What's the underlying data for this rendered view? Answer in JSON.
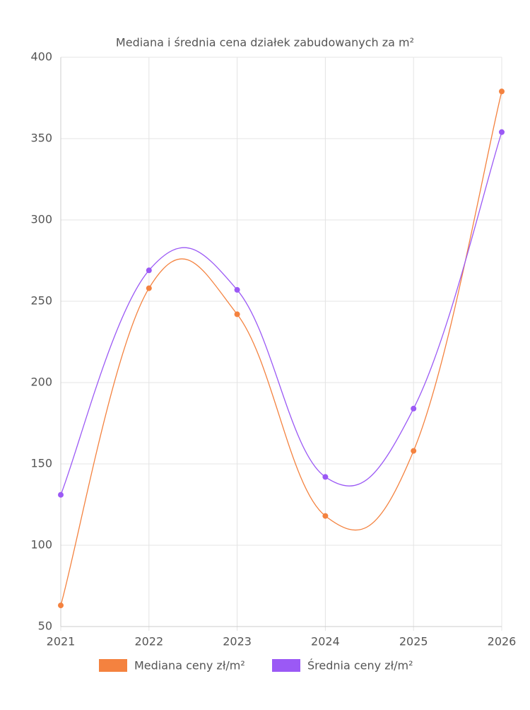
{
  "chart_data": {
    "type": "line",
    "title": "Mediana i średnia cena działek zabudowanych za m²",
    "categories": [
      "2021",
      "2022",
      "2023",
      "2024",
      "2025",
      "2026"
    ],
    "series": [
      {
        "name": "Mediana ceny zł/m²",
        "color": "#f4823f",
        "values": [
          63,
          258,
          242,
          118,
          158,
          379
        ]
      },
      {
        "name": "Średnia ceny zł/m²",
        "color": "#9b59f5",
        "values": [
          131,
          269,
          257,
          142,
          184,
          354
        ]
      }
    ],
    "ylim": [
      50,
      400
    ],
    "yticks": [
      50,
      100,
      150,
      200,
      250,
      300,
      350,
      400
    ],
    "grid": true,
    "legend": "bottom"
  }
}
